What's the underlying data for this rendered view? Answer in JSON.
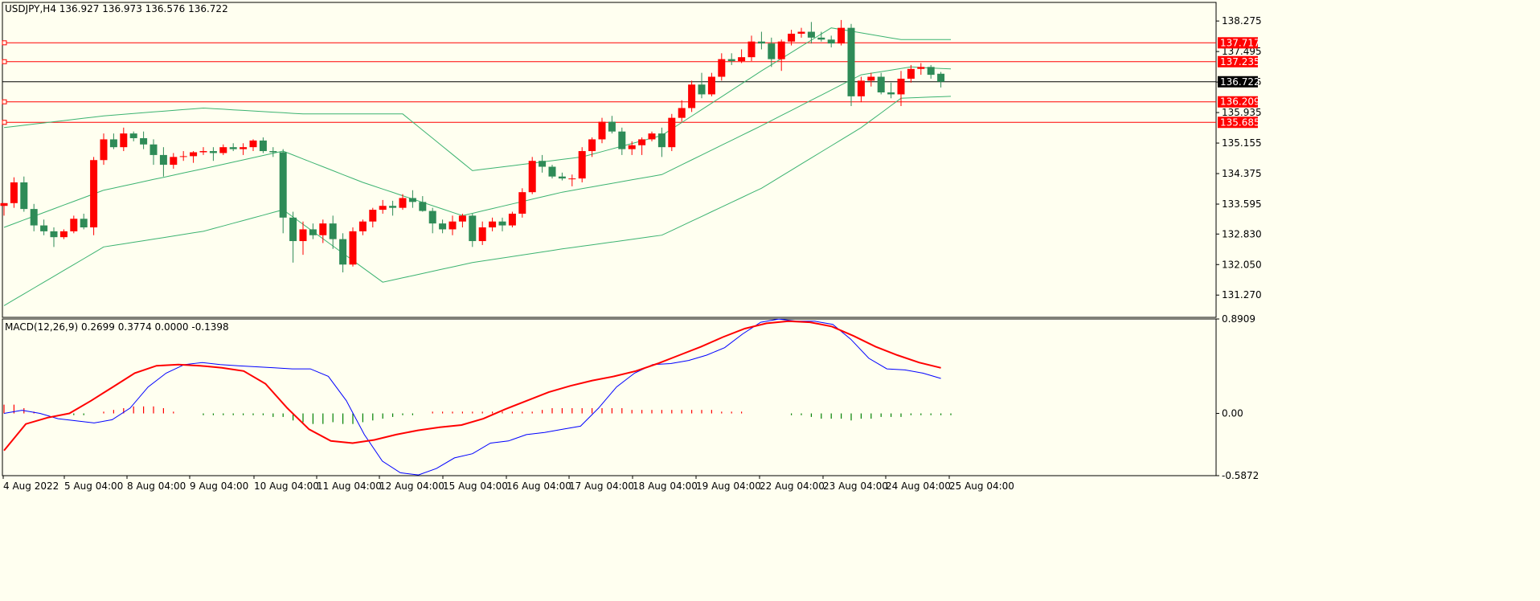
{
  "chart_data": {
    "type": "candlestick",
    "symbol_header": "USDJPY,H4  136.927 136.973 136.576 136.722",
    "price_axis": {
      "range": [
        130.7,
        138.75
      ],
      "ticks": [
        "138.275",
        "137.495",
        "136.715",
        "135.935",
        "135.155",
        "134.375",
        "133.595",
        "132.830",
        "132.050",
        "131.270"
      ]
    },
    "price_levels": [
      {
        "label": "137.717",
        "value": 137.717,
        "color": "#ff0000"
      },
      {
        "label": "137.235",
        "value": 137.235,
        "color": "#ff0000"
      },
      {
        "label": "136.209",
        "value": 136.209,
        "color": "#ff0000"
      },
      {
        "label": "135.685",
        "value": 135.685,
        "color": "#ff0000"
      }
    ],
    "current_price": {
      "label": "136.722",
      "value": 136.722,
      "color": "#000000"
    },
    "time_labels": [
      "4 Aug 2022",
      "5 Aug 04:00",
      "8 Aug 04:00",
      "9 Aug 04:00",
      "10 Aug 04:00",
      "11 Aug 04:00",
      "12 Aug 04:00",
      "15 Aug 04:00",
      "16 Aug 04:00",
      "17 Aug 04:00",
      "18 Aug 04:00",
      "19 Aug 04:00",
      "22 Aug 04:00",
      "23 Aug 04:00",
      "24 Aug 04:00",
      "25 Aug 04:00"
    ],
    "candles": [
      [
        133.55,
        133.62,
        133.3,
        133.62
      ],
      [
        133.62,
        134.28,
        133.5,
        134.15
      ],
      [
        134.15,
        134.3,
        133.4,
        133.47
      ],
      [
        133.47,
        133.6,
        132.9,
        133.05
      ],
      [
        133.05,
        133.2,
        132.8,
        132.9
      ],
      [
        132.9,
        133.0,
        132.5,
        132.75
      ],
      [
        132.75,
        132.95,
        132.7,
        132.9
      ],
      [
        132.9,
        133.3,
        132.85,
        133.22
      ],
      [
        133.22,
        133.35,
        132.95,
        133.0
      ],
      [
        133.0,
        134.8,
        132.8,
        134.72
      ],
      [
        134.72,
        135.4,
        134.6,
        135.25
      ],
      [
        135.25,
        135.4,
        135.0,
        135.05
      ],
      [
        135.05,
        135.55,
        134.95,
        135.4
      ],
      [
        135.4,
        135.45,
        135.2,
        135.28
      ],
      [
        135.28,
        135.45,
        135.0,
        135.12
      ],
      [
        135.12,
        135.25,
        134.6,
        134.85
      ],
      [
        134.85,
        135.05,
        134.3,
        134.6
      ],
      [
        134.6,
        134.9,
        134.5,
        134.8
      ],
      [
        134.8,
        134.95,
        134.7,
        134.82
      ],
      [
        134.82,
        134.95,
        134.65,
        134.92
      ],
      [
        134.92,
        135.05,
        134.85,
        134.95
      ],
      [
        134.95,
        135.05,
        134.7,
        134.9
      ],
      [
        134.9,
        135.12,
        134.85,
        135.05
      ],
      [
        135.05,
        135.15,
        134.95,
        135.0
      ],
      [
        135.0,
        135.15,
        134.85,
        135.05
      ],
      [
        135.05,
        135.25,
        134.95,
        135.22
      ],
      [
        135.22,
        135.3,
        134.9,
        134.95
      ],
      [
        134.95,
        135.05,
        134.8,
        134.92
      ],
      [
        134.92,
        135.0,
        132.85,
        133.25
      ],
      [
        133.25,
        133.4,
        132.1,
        132.65
      ],
      [
        132.65,
        133.15,
        132.3,
        132.95
      ],
      [
        132.95,
        133.1,
        132.7,
        132.8
      ],
      [
        132.8,
        133.2,
        132.6,
        133.1
      ],
      [
        133.1,
        133.3,
        132.45,
        132.7
      ],
      [
        132.7,
        132.85,
        131.85,
        132.05
      ],
      [
        132.05,
        133.0,
        132.0,
        132.9
      ],
      [
        132.9,
        133.2,
        132.8,
        133.15
      ],
      [
        133.15,
        133.5,
        133.0,
        133.45
      ],
      [
        133.45,
        133.7,
        133.35,
        133.55
      ],
      [
        133.55,
        133.68,
        133.3,
        133.5
      ],
      [
        133.5,
        133.85,
        133.45,
        133.75
      ],
      [
        133.75,
        133.95,
        133.5,
        133.65
      ],
      [
        133.65,
        133.8,
        133.4,
        133.42
      ],
      [
        133.42,
        133.5,
        132.85,
        133.1
      ],
      [
        133.1,
        133.2,
        132.85,
        132.95
      ],
      [
        132.95,
        133.3,
        132.8,
        133.15
      ],
      [
        133.15,
        133.35,
        133.0,
        133.3
      ],
      [
        133.3,
        133.35,
        132.5,
        132.65
      ],
      [
        132.65,
        133.15,
        132.55,
        133.0
      ],
      [
        133.0,
        133.25,
        132.9,
        133.15
      ],
      [
        133.15,
        133.25,
        132.9,
        133.05
      ],
      [
        133.05,
        133.4,
        133.0,
        133.35
      ],
      [
        133.35,
        134.0,
        133.25,
        133.9
      ],
      [
        133.9,
        134.8,
        133.85,
        134.7
      ],
      [
        134.7,
        134.85,
        134.4,
        134.55
      ],
      [
        134.55,
        134.6,
        134.25,
        134.3
      ],
      [
        134.3,
        134.4,
        134.2,
        134.25
      ],
      [
        134.25,
        134.35,
        134.05,
        134.25
      ],
      [
        134.25,
        135.05,
        134.15,
        134.95
      ],
      [
        134.95,
        135.3,
        134.8,
        135.25
      ],
      [
        135.25,
        135.8,
        135.15,
        135.7
      ],
      [
        135.7,
        135.85,
        135.4,
        135.45
      ],
      [
        135.45,
        135.55,
        134.85,
        135.0
      ],
      [
        135.0,
        135.2,
        134.85,
        135.1
      ],
      [
        135.1,
        135.3,
        134.85,
        135.25
      ],
      [
        135.25,
        135.45,
        135.2,
        135.4
      ],
      [
        135.4,
        135.55,
        134.8,
        135.05
      ],
      [
        135.05,
        135.9,
        134.95,
        135.8
      ],
      [
        135.8,
        136.25,
        135.7,
        136.05
      ],
      [
        136.05,
        136.75,
        135.95,
        136.65
      ],
      [
        136.65,
        136.95,
        136.3,
        136.4
      ],
      [
        136.4,
        136.95,
        136.35,
        136.85
      ],
      [
        136.85,
        137.45,
        136.75,
        137.3
      ],
      [
        137.3,
        137.45,
        137.15,
        137.25
      ],
      [
        137.25,
        137.55,
        137.2,
        137.35
      ],
      [
        137.35,
        137.9,
        137.25,
        137.75
      ],
      [
        137.75,
        138.0,
        137.55,
        137.7
      ],
      [
        137.7,
        137.85,
        137.1,
        137.3
      ],
      [
        137.3,
        137.8,
        137.0,
        137.75
      ],
      [
        137.75,
        138.05,
        137.65,
        137.95
      ],
      [
        137.95,
        138.1,
        137.85,
        138.0
      ],
      [
        138.0,
        138.25,
        137.7,
        137.85
      ],
      [
        137.85,
        138.0,
        137.75,
        137.8
      ],
      [
        137.8,
        137.9,
        137.6,
        137.7
      ],
      [
        137.7,
        138.3,
        137.65,
        138.1
      ],
      [
        138.1,
        138.2,
        136.1,
        136.35
      ],
      [
        136.35,
        136.85,
        136.2,
        136.75
      ],
      [
        136.75,
        136.95,
        136.6,
        136.85
      ],
      [
        136.85,
        136.95,
        136.4,
        136.45
      ],
      [
        136.45,
        136.7,
        136.3,
        136.4
      ],
      [
        136.4,
        137.0,
        136.1,
        136.8
      ],
      [
        136.8,
        137.15,
        136.7,
        137.05
      ],
      [
        137.05,
        137.2,
        136.9,
        137.1
      ],
      [
        137.1,
        137.15,
        136.8,
        136.9
      ],
      [
        136.927,
        136.973,
        136.576,
        136.722
      ]
    ],
    "bollinger_bands": {
      "color": "#3cb371",
      "upper": [
        [
          0,
          135.55
        ],
        [
          10,
          135.85
        ],
        [
          20,
          136.05
        ],
        [
          30,
          135.9
        ],
        [
          40,
          135.9
        ],
        [
          47,
          134.45
        ],
        [
          58,
          134.8
        ],
        [
          66,
          135.35
        ],
        [
          76,
          137.0
        ],
        [
          83,
          138.1
        ],
        [
          90,
          137.8
        ],
        [
          95,
          137.8
        ]
      ],
      "middle": [
        [
          0,
          133.0
        ],
        [
          10,
          133.95
        ],
        [
          20,
          134.5
        ],
        [
          28,
          134.95
        ],
        [
          36,
          134.15
        ],
        [
          46,
          133.3
        ],
        [
          56,
          133.9
        ],
        [
          66,
          134.35
        ],
        [
          76,
          135.6
        ],
        [
          86,
          136.9
        ],
        [
          91,
          137.1
        ],
        [
          95,
          137.05
        ]
      ],
      "lower": [
        [
          0,
          131.0
        ],
        [
          10,
          132.5
        ],
        [
          20,
          132.9
        ],
        [
          28,
          133.45
        ],
        [
          38,
          131.6
        ],
        [
          47,
          132.1
        ],
        [
          56,
          132.45
        ],
        [
          66,
          132.8
        ],
        [
          76,
          134.0
        ],
        [
          86,
          135.55
        ],
        [
          90,
          136.3
        ],
        [
          95,
          136.35
        ]
      ]
    },
    "macd": {
      "header": "MACD(12,26,9) 0.2699 0.3774 0.0000 -0.1398",
      "range": [
        -0.5872,
        0.8909
      ],
      "ticks": [
        "0.8909",
        "0.00",
        "-0.5872"
      ],
      "histogram_color_up": "#ff0000",
      "histogram_color_down": "#008000",
      "histogram": [
        0.05,
        0.05,
        0.03,
        0.01,
        0.0,
        0.0,
        0.0,
        -0.01,
        -0.01,
        0.0,
        0.01,
        0.02,
        0.03,
        0.04,
        0.04,
        0.04,
        0.03,
        0.01,
        0.0,
        0.0,
        -0.01,
        -0.01,
        -0.01,
        -0.01,
        -0.01,
        -0.01,
        -0.01,
        -0.02,
        -0.02,
        -0.04,
        -0.05,
        -0.06,
        -0.06,
        -0.05,
        -0.06,
        -0.06,
        -0.05,
        -0.04,
        -0.03,
        -0.02,
        -0.01,
        -0.01,
        0.0,
        0.01,
        0.01,
        0.01,
        0.01,
        0.01,
        0.01,
        0.01,
        0.01,
        0.01,
        0.01,
        0.01,
        0.02,
        0.03,
        0.03,
        0.03,
        0.03,
        0.03,
        0.03,
        0.03,
        0.03,
        0.02,
        0.02,
        0.02,
        0.02,
        0.02,
        0.02,
        0.02,
        0.02,
        0.02,
        0.01,
        0.01,
        0.01,
        0.0,
        0.0,
        0.0,
        0.0,
        -0.01,
        -0.01,
        -0.02,
        -0.03,
        -0.03,
        -0.03,
        -0.04,
        -0.03,
        -0.03,
        -0.02,
        -0.02,
        -0.02,
        -0.01,
        -0.01,
        -0.01,
        -0.01,
        -0.01
      ],
      "macd_line": [
        0.0,
        0.03,
        0.0,
        -0.05,
        -0.07,
        -0.09,
        -0.06,
        0.05,
        0.25,
        0.38,
        0.46,
        0.48,
        0.46,
        0.45,
        0.44,
        0.43,
        0.42,
        0.42,
        0.35,
        0.12,
        -0.2,
        -0.45,
        -0.56,
        -0.58,
        -0.52,
        -0.42,
        -0.38,
        -0.28,
        -0.26,
        -0.2,
        -0.18,
        -0.15,
        -0.12,
        0.05,
        0.25,
        0.38,
        0.46,
        0.47,
        0.5,
        0.55,
        0.62,
        0.75,
        0.86,
        0.89,
        0.87,
        0.87,
        0.84,
        0.7,
        0.52,
        0.42,
        0.41,
        0.38,
        0.33
      ],
      "signal_line": [
        -0.35,
        -0.1,
        -0.04,
        0.0,
        0.12,
        0.25,
        0.38,
        0.45,
        0.46,
        0.45,
        0.43,
        0.4,
        0.28,
        0.05,
        -0.15,
        -0.26,
        -0.28,
        -0.25,
        -0.2,
        -0.16,
        -0.13,
        -0.11,
        -0.05,
        0.04,
        0.12,
        0.2,
        0.26,
        0.31,
        0.35,
        0.4,
        0.47,
        0.55,
        0.63,
        0.72,
        0.8,
        0.85,
        0.87,
        0.86,
        0.82,
        0.73,
        0.63,
        0.55,
        0.48,
        0.43
      ]
    }
  }
}
